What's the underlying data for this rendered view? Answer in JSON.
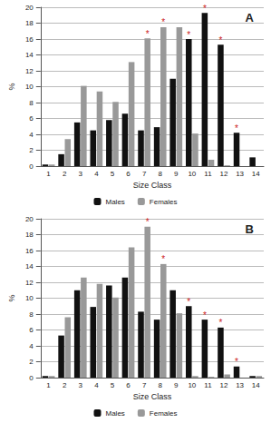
{
  "chart_data": [
    {
      "type": "bar",
      "title": "A",
      "categories": [
        "1",
        "2",
        "3",
        "4",
        "5",
        "6",
        "7",
        "8",
        "9",
        "10",
        "11",
        "12",
        "13",
        "14"
      ],
      "series": [
        {
          "name": "Males",
          "color": "#111111",
          "values": [
            0.2,
            1.5,
            5.5,
            4.5,
            5.8,
            6.6,
            4.5,
            4.9,
            11,
            16,
            19.3,
            15.3,
            4.2,
            1.1
          ]
        },
        {
          "name": "Females",
          "color": "#999999",
          "values": [
            0.2,
            3.4,
            10.1,
            9.4,
            8.1,
            13.1,
            16.1,
            17.5,
            17.5,
            4.1,
            0.8,
            0.1,
            0,
            0
          ]
        }
      ],
      "x_label": "Size Class",
      "y_label": "%",
      "ylim": [
        0,
        20
      ],
      "yticks": [
        0,
        2,
        4,
        6,
        8,
        10,
        12,
        14,
        16,
        18,
        20
      ],
      "grid": true,
      "legend": "bottom",
      "annotations": [
        {
          "category": "7",
          "text": "*"
        },
        {
          "category": "8",
          "text": "*"
        },
        {
          "category": "10",
          "text": "*"
        },
        {
          "category": "11",
          "text": "*"
        },
        {
          "category": "12",
          "text": "*"
        },
        {
          "category": "13",
          "text": "*"
        }
      ]
    },
    {
      "type": "bar",
      "title": "B",
      "categories": [
        "1",
        "2",
        "3",
        "4",
        "5",
        "6",
        "7",
        "8",
        "9",
        "10",
        "11",
        "12",
        "13",
        "14"
      ],
      "series": [
        {
          "name": "Males",
          "color": "#111111",
          "values": [
            0.2,
            5.3,
            11,
            8.9,
            11.6,
            12.6,
            8.3,
            7.3,
            11,
            9,
            7.3,
            6.3,
            1.4,
            0.2
          ]
        },
        {
          "name": "Females",
          "color": "#999999",
          "values": [
            0.2,
            7.6,
            12.6,
            11.8,
            10.1,
            16.4,
            19,
            14.3,
            8.1,
            0.2,
            0.1,
            0.4,
            0,
            0.2
          ]
        }
      ],
      "x_label": "Size Class",
      "y_label": "%",
      "ylim": [
        0,
        20
      ],
      "yticks": [
        0,
        2,
        4,
        6,
        8,
        10,
        12,
        14,
        16,
        18,
        20
      ],
      "grid": true,
      "legend": "bottom",
      "annotations": [
        {
          "category": "7",
          "text": "*"
        },
        {
          "category": "8",
          "text": "*"
        },
        {
          "category": "10",
          "text": "*"
        },
        {
          "category": "11",
          "text": "*"
        },
        {
          "category": "12",
          "text": "*"
        },
        {
          "category": "13",
          "text": "*"
        }
      ]
    }
  ]
}
